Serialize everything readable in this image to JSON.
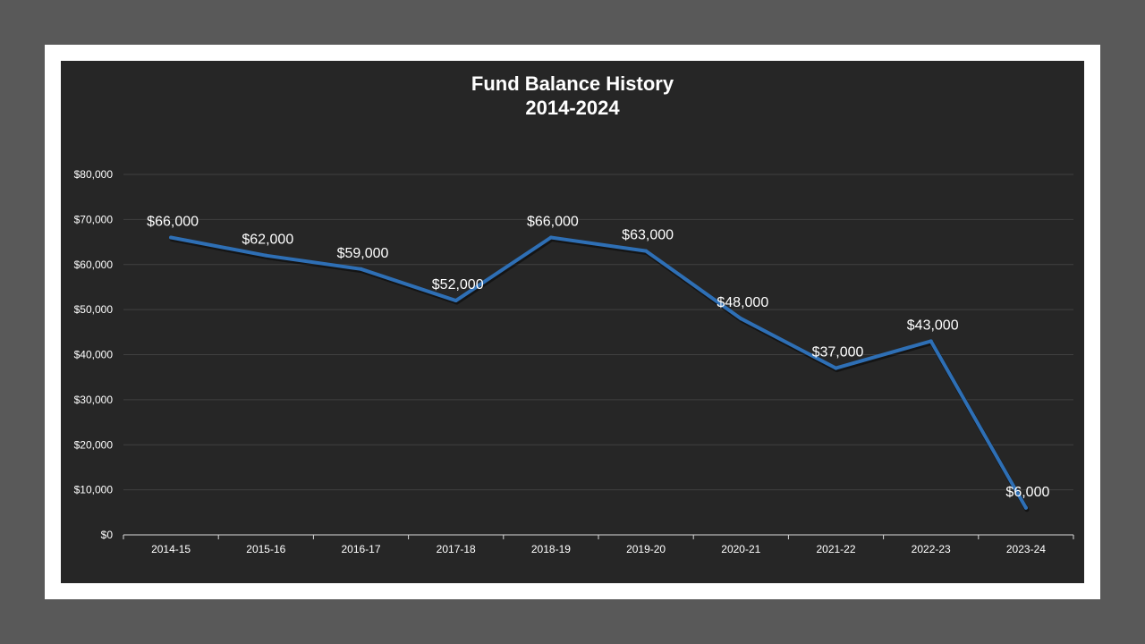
{
  "colors": {
    "page_background": "#595959",
    "frame": "#ffffff",
    "plot_background": "#262626",
    "gridline": "#404040",
    "axis": "#d9d9d9",
    "series_line": "#2e6fb5",
    "text": "#ffffff"
  },
  "chart_data": {
    "type": "line",
    "title": "Fund Balance History",
    "subtitle": "2014-2024",
    "categories": [
      "2014-15",
      "2015-16",
      "2016-17",
      "2017-18",
      "2018-19",
      "2019-20",
      "2020-21",
      "2021-22",
      "2022-23",
      "2023-24"
    ],
    "series": [
      {
        "values": [
          66000,
          62000,
          59000,
          52000,
          66000,
          63000,
          48000,
          37000,
          43000,
          6000
        ],
        "data_labels": [
          "$66,000",
          "$62,000",
          "$59,000",
          "$52,000",
          "$66,000",
          "$63,000",
          "$48,000",
          "$37,000",
          "$43,000",
          "$6,000"
        ]
      }
    ],
    "ylim": [
      0,
      80000
    ],
    "yticks": [
      0,
      10000,
      20000,
      30000,
      40000,
      50000,
      60000,
      70000,
      80000
    ],
    "ytick_labels": [
      "$0",
      "$10,000",
      "$20,000",
      "$30,000",
      "$40,000",
      "$50,000",
      "$60,000",
      "$70,000",
      "$80,000"
    ],
    "grid": true,
    "legend": "none",
    "xlabel": "",
    "ylabel": ""
  }
}
